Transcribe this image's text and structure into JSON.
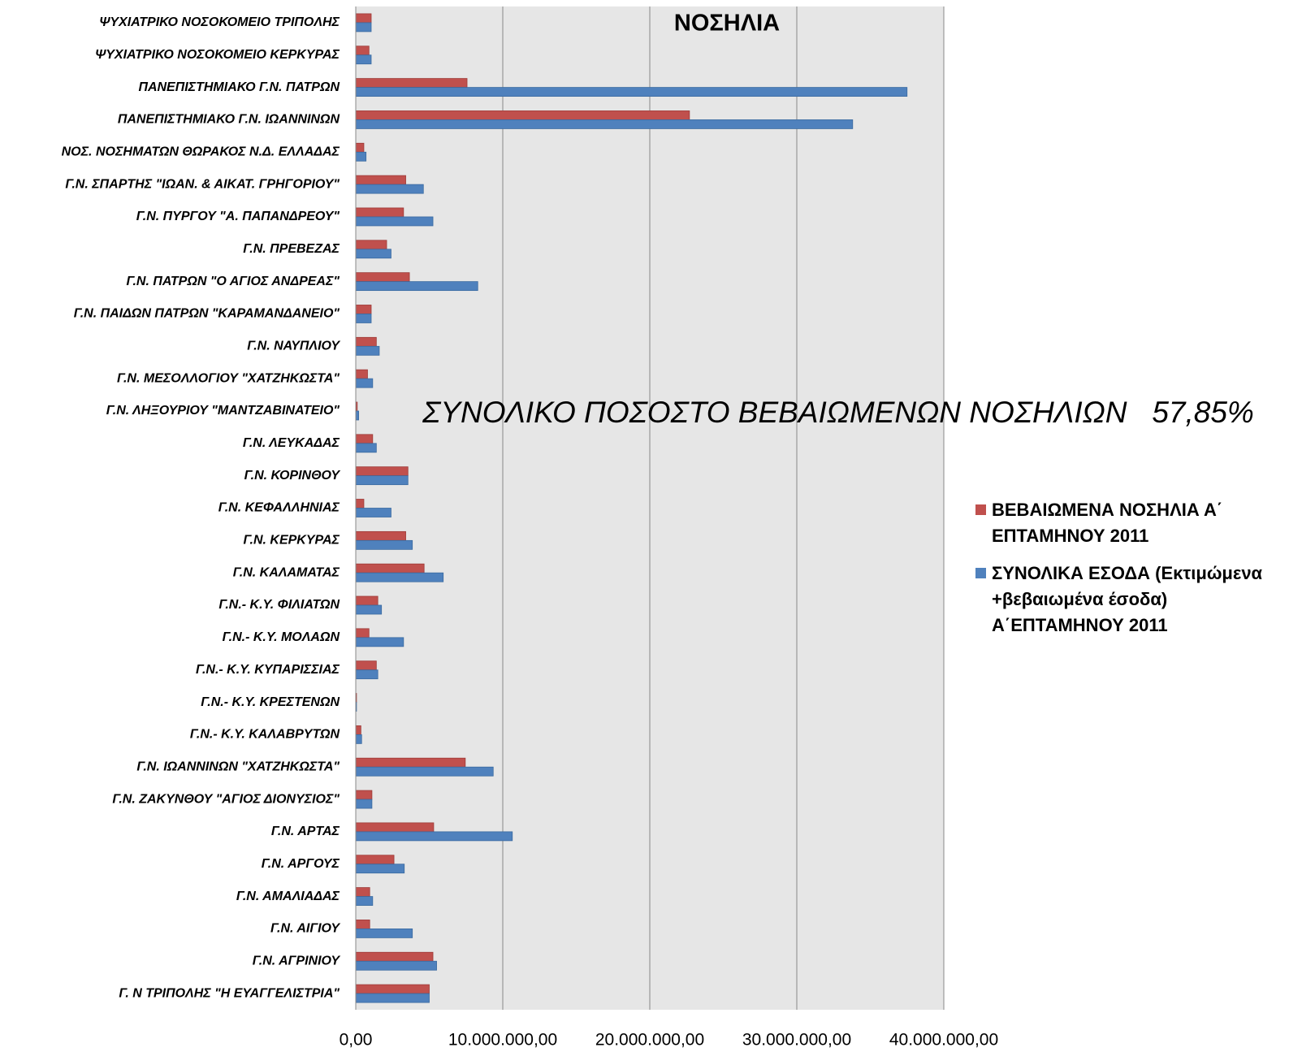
{
  "chart_data": {
    "type": "hbar",
    "title": "ΝΟΣΗΛΙΑ",
    "annotation": "ΣΥΝΟΛΙΚΟ ΠΟΣΟΣΤΟ ΒΕΒΑΙΩΜΕΝΩΝ ΝΟΣΗΛΙΩΝ   57,85%",
    "categories": [
      "ΨΥΧΙΑΤΡΙΚΟ ΝΟΣΟΚΟΜΕΙΟ ΤΡΙΠΟΛΗΣ",
      "ΨΥΧΙΑΤΡΙΚΟ ΝΟΣΟΚΟΜΕΙΟ ΚΕΡΚΥΡΑΣ",
      "ΠΑΝΕΠΙΣΤΗΜΙΑΚΟ Γ.Ν. ΠΑΤΡΩΝ",
      "ΠΑΝΕΠΙΣΤΗΜΙΑΚΟ Γ.Ν. ΙΩΑΝΝΙΝΩΝ",
      "ΝΟΣ. ΝΟΣΗΜΑΤΩΝ ΘΩΡΑΚΟΣ Ν.Δ. ΕΛΛΑΔΑΣ",
      "Γ.Ν. ΣΠΑΡΤΗΣ \"ΙΩΑΝ. & ΑΙΚΑΤ. ΓΡΗΓΟΡΙΟΥ\"",
      "Γ.Ν. ΠΥΡΓΟΥ \"Α. ΠΑΠΑΝΔΡΕΟΥ\"",
      "Γ.Ν. ΠΡΕΒΕΖΑΣ",
      "Γ.Ν. ΠΑΤΡΩΝ \"Ο ΑΓΙΟΣ ΑΝΔΡΕΑΣ\"",
      "Γ.Ν. ΠΑΙΔΩΝ ΠΑΤΡΩΝ \"ΚΑΡΑΜΑΝΔΑΝΕΙΟ\"",
      "Γ.Ν. ΝΑΥΠΛΙΟΥ",
      "Γ.Ν. ΜΕΣΟΛΛΟΓΙΟΥ \"ΧΑΤΖΗΚΩΣΤΑ\"",
      "Γ.Ν. ΛΗΞΟΥΡΙΟΥ \"ΜΑΝΤΖΑΒΙΝΑΤΕΙΟ\"",
      "Γ.Ν. ΛΕΥΚΑΔΑΣ",
      "Γ.Ν. ΚΟΡΙΝΘΟΥ",
      "Γ.Ν. ΚΕΦΑΛΛΗΝΙΑΣ",
      "Γ.Ν. ΚΕΡΚΥΡΑΣ",
      "Γ.Ν. ΚΑΛΑΜΑΤΑΣ",
      "Γ.Ν.- Κ.Υ. ΦΙΛΙΑΤΩΝ",
      "Γ.Ν.- Κ.Υ. ΜΟΛΑΩΝ",
      "Γ.Ν.- Κ.Υ. ΚΥΠΑΡΙΣΣΙΑΣ",
      "Γ.Ν.- Κ.Υ. ΚΡΕΣΤΕΝΩΝ",
      "Γ.Ν.- Κ.Υ. ΚΑΛΑΒΡΥΤΩΝ",
      "Γ.Ν. ΙΩΑΝΝΙΝΩΝ \"ΧΑΤΖΗΚΩΣΤΑ\"",
      "Γ.Ν. ΖΑΚΥΝΘΟΥ \"ΑΓΙΟΣ ΔΙΟΝΥΣΙΟΣ\"",
      "Γ.Ν. ΑΡΤΑΣ",
      "Γ.Ν. ΑΡΓΟΥΣ",
      "Γ.Ν. ΑΜΑΛΙΑΔΑΣ",
      "Γ.Ν. ΑΙΓΙΟΥ",
      "Γ.Ν. ΑΓΡΙΝΙΟΥ",
      "Γ. Ν ΤΡΙΠΟΛΗΣ \"Η ΕΥΑΓΓΕΛΙΣΤΡΙΑ\""
    ],
    "series": [
      {
        "name": "ΒΕΒΑΙΩΜΕΝΑ ΝΟΣΗΛΙΑ Α΄ ΕΠΤΑΜΗΝΟΥ 2011",
        "color": "#c0504d",
        "values": [
          1050000,
          900000,
          7570000,
          22700000,
          550000,
          3400000,
          3250000,
          2100000,
          3650000,
          1050000,
          1400000,
          800000,
          100000,
          1150000,
          3550000,
          550000,
          3400000,
          4650000,
          1500000,
          900000,
          1400000,
          50000,
          350000,
          7450000,
          1100000,
          5300000,
          2600000,
          950000,
          950000,
          5250000,
          5000000
        ]
      },
      {
        "name": "ΣΥΝΟΛΙΚΑ ΕΣΟΔΑ (Εκτιμώμενα +βεβαιωμένα έσοδα) Α΄ΕΠΤΑΜΗΝΟΥ 2011",
        "color": "#4f81bd",
        "values": [
          1050000,
          1050000,
          37500000,
          33800000,
          700000,
          4600000,
          5250000,
          2400000,
          8300000,
          1050000,
          1600000,
          1150000,
          200000,
          1400000,
          3550000,
          2400000,
          3850000,
          5950000,
          1750000,
          3250000,
          1500000,
          50000,
          400000,
          9350000,
          1100000,
          10650000,
          3300000,
          1150000,
          3850000,
          5500000,
          5000000
        ]
      }
    ],
    "xlim": [
      0,
      40000000
    ],
    "xticks": [
      {
        "value": 0,
        "label": "0,00"
      },
      {
        "value": 10000000,
        "label": "10.000.000,00"
      },
      {
        "value": 20000000,
        "label": "20.000.000,00"
      },
      {
        "value": 30000000,
        "label": "30.000.000,00"
      },
      {
        "value": 40000000,
        "label": "40.000.000,00"
      }
    ],
    "grid": true
  }
}
